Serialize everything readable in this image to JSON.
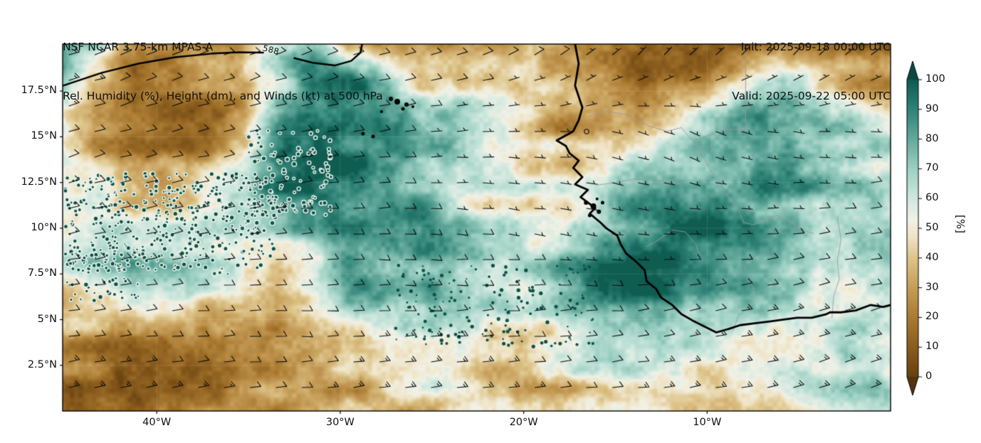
{
  "header": {
    "title_line1": "NSF NCAR 3.75-km MPAS-A",
    "title_line2": "Rel. Humidity (%), Height (dm), and Winds (kt) at 500 hPa",
    "init_label": "Init: 2025-09-18 00:00 UTC",
    "valid_label": "Valid: 2025-09-22 05:00 UTC"
  },
  "axes": {
    "x_ticks": [
      {
        "label": "40°W",
        "lon": -40
      },
      {
        "label": "30°W",
        "lon": -30
      },
      {
        "label": "20°W",
        "lon": -20
      },
      {
        "label": "10°W",
        "lon": -10
      }
    ],
    "y_ticks": [
      {
        "label": "17.5°N",
        "lat": 17.5
      },
      {
        "label": "15°N",
        "lat": 15
      },
      {
        "label": "12.5°N",
        "lat": 12.5
      },
      {
        "label": "10°N",
        "lat": 10
      },
      {
        "label": "7.5°N",
        "lat": 7.5
      },
      {
        "label": "5°N",
        "lat": 5
      },
      {
        "label": "2.5°N",
        "lat": 2.5
      }
    ]
  },
  "colorbar": {
    "unit": "[%]",
    "tick_values": [
      0,
      10,
      20,
      30,
      40,
      50,
      60,
      70,
      80,
      90,
      100
    ],
    "stops": [
      {
        "v": 0,
        "c": "#66400e"
      },
      {
        "v": 10,
        "c": "#8a5c1d"
      },
      {
        "v": 20,
        "c": "#a97a31"
      },
      {
        "v": 30,
        "c": "#c59c57"
      },
      {
        "v": 40,
        "c": "#ddc389"
      },
      {
        "v": 47,
        "c": "#eee3c4"
      },
      {
        "v": 53,
        "c": "#f1f1e6"
      },
      {
        "v": 60,
        "c": "#cfe8df"
      },
      {
        "v": 70,
        "c": "#9dd0c3"
      },
      {
        "v": 80,
        "c": "#63a99b"
      },
      {
        "v": 90,
        "c": "#2f8376"
      },
      {
        "v": 100,
        "c": "#0f5c51"
      }
    ],
    "under_color": "#553409",
    "over_color": "#0a4a41"
  },
  "chart_data": {
    "type": "heatmap",
    "field": "relative_humidity_500hPa_percent",
    "lon_range": [
      -45.13,
      0
    ],
    "lat_range": [
      0,
      20.07
    ],
    "value_range": [
      0,
      100
    ],
    "rh_grid": {
      "note": "coarse RH(%) grid, rows = lat 20N..0N step 2, cols = lon 45W..0W in 24 steps",
      "lats": [
        20,
        18,
        16,
        14,
        12,
        10,
        8,
        6,
        4,
        2,
        0
      ],
      "rows": [
        [
          75,
          60,
          28,
          25,
          28,
          35,
          75,
          85,
          45,
          35,
          35,
          30,
          30,
          35,
          30,
          20,
          10,
          8,
          8,
          10,
          20,
          15,
          10,
          12
        ],
        [
          70,
          45,
          22,
          20,
          22,
          30,
          60,
          90,
          90,
          70,
          45,
          40,
          35,
          40,
          35,
          25,
          12,
          12,
          15,
          45,
          70,
          50,
          28,
          25
        ],
        [
          55,
          25,
          20,
          18,
          20,
          30,
          80,
          95,
          90,
          85,
          60,
          70,
          55,
          45,
          30,
          40,
          35,
          55,
          75,
          80,
          70,
          65,
          60,
          50
        ],
        [
          55,
          30,
          22,
          20,
          25,
          45,
          90,
          95,
          90,
          90,
          80,
          70,
          50,
          40,
          35,
          45,
          60,
          70,
          80,
          75,
          80,
          70,
          75,
          65
        ],
        [
          45,
          55,
          35,
          30,
          40,
          60,
          85,
          95,
          90,
          85,
          80,
          60,
          55,
          50,
          45,
          55,
          75,
          85,
          90,
          85,
          80,
          75,
          70,
          65
        ],
        [
          50,
          60,
          55,
          50,
          55,
          65,
          80,
          85,
          80,
          75,
          80,
          70,
          60,
          55,
          65,
          80,
          90,
          95,
          90,
          85,
          80,
          70,
          75,
          70
        ],
        [
          60,
          75,
          80,
          75,
          70,
          55,
          45,
          60,
          85,
          80,
          85,
          80,
          70,
          65,
          75,
          90,
          95,
          95,
          90,
          80,
          70,
          65,
          70,
          75
        ],
        [
          40,
          45,
          50,
          55,
          45,
          40,
          35,
          45,
          70,
          80,
          85,
          80,
          70,
          60,
          70,
          85,
          95,
          90,
          85,
          75,
          60,
          55,
          60,
          65
        ],
        [
          25,
          22,
          20,
          25,
          28,
          30,
          30,
          35,
          40,
          45,
          50,
          55,
          45,
          40,
          55,
          65,
          70,
          65,
          62,
          58,
          55,
          52,
          58,
          62
        ],
        [
          20,
          18,
          15,
          18,
          20,
          25,
          28,
          30,
          35,
          40,
          45,
          50,
          45,
          40,
          45,
          52,
          55,
          52,
          50,
          55,
          62,
          68,
          72,
          68
        ],
        [
          22,
          20,
          18,
          20,
          22,
          28,
          30,
          32,
          35,
          38,
          42,
          45,
          42,
          38,
          42,
          46,
          48,
          46,
          45,
          50,
          56,
          62,
          68,
          64
        ]
      ]
    },
    "wind_grid": {
      "note": "wind barbs (kt), dir = meteorological direction wind blows FROM",
      "lons": [
        -45,
        -39.4,
        -33.8,
        -28.2,
        -22.6,
        -16.9,
        -11.3,
        -5.6,
        0
      ],
      "lats": [
        20,
        15,
        10,
        5,
        0
      ],
      "speed_kt": [
        [
          15,
          12,
          10,
          12,
          10,
          8,
          6,
          5,
          5
        ],
        [
          12,
          10,
          8,
          10,
          4,
          2,
          3,
          5,
          6
        ],
        [
          10,
          8,
          8,
          8,
          8,
          5,
          5,
          8,
          10
        ],
        [
          12,
          10,
          10,
          12,
          12,
          10,
          12,
          15,
          12
        ],
        [
          15,
          15,
          12,
          15,
          15,
          12,
          15,
          15,
          15
        ]
      ],
      "dir_from_deg": [
        [
          70,
          70,
          68,
          75,
          70,
          45,
          35,
          40,
          50
        ],
        [
          72,
          75,
          78,
          80,
          90,
          95,
          120,
          100,
          90
        ],
        [
          75,
          78,
          85,
          90,
          95,
          100,
          90,
          85,
          80
        ],
        [
          82,
          85,
          90,
          90,
          85,
          85,
          80,
          75,
          75
        ],
        [
          75,
          80,
          85,
          80,
          80,
          85,
          80,
          75,
          70
        ]
      ]
    },
    "contour_588": {
      "label": "588",
      "value_dm": 588,
      "segments": [
        [
          [
            -45.1,
            17.8
          ],
          [
            -43.0,
            18.5
          ],
          [
            -41.0,
            19.0
          ],
          [
            -39.0,
            19.35
          ],
          [
            -37.0,
            19.55
          ],
          [
            -35.5,
            19.62
          ],
          [
            -34.2,
            19.6
          ]
        ],
        [
          [
            -32.5,
            19.3
          ],
          [
            -31.5,
            19.05
          ],
          [
            -30.3,
            18.9
          ],
          [
            -29.4,
            19.15
          ],
          [
            -28.9,
            19.6
          ],
          [
            -28.8,
            20.1
          ]
        ]
      ]
    },
    "coastline": [
      [
        -17.2,
        20.07
      ],
      [
        -17.0,
        19.0
      ],
      [
        -17.2,
        17.8
      ],
      [
        -16.8,
        16.6
      ],
      [
        -17.0,
        15.9
      ],
      [
        -17.3,
        15.3
      ],
      [
        -18.2,
        14.8
      ],
      [
        -17.7,
        14.5
      ],
      [
        -17.5,
        14.1
      ],
      [
        -17.0,
        13.7
      ],
      [
        -17.3,
        13.3
      ],
      [
        -16.8,
        12.8
      ],
      [
        -17.2,
        12.4
      ],
      [
        -16.5,
        12.1
      ],
      [
        -16.9,
        11.7
      ],
      [
        -16.1,
        11.1
      ],
      [
        -16.4,
        10.8
      ],
      [
        -15.8,
        10.3
      ],
      [
        -15.5,
        10.0
      ],
      [
        -14.9,
        9.6
      ],
      [
        -14.7,
        9.1
      ],
      [
        -14.4,
        8.6
      ],
      [
        -13.9,
        8.2
      ],
      [
        -13.4,
        7.7
      ],
      [
        -13.3,
        7.1
      ],
      [
        -12.8,
        6.7
      ],
      [
        -12.5,
        6.2
      ],
      [
        -11.9,
        5.8
      ],
      [
        -11.4,
        5.3
      ],
      [
        -10.7,
        4.9
      ],
      [
        -10.1,
        4.6
      ],
      [
        -9.5,
        4.3
      ],
      [
        -8.8,
        4.5
      ],
      [
        -8.2,
        4.7
      ],
      [
        -7.4,
        4.8
      ],
      [
        -6.6,
        4.9
      ],
      [
        -5.9,
        5.0
      ],
      [
        -5.1,
        5.1
      ],
      [
        -4.3,
        5.1
      ],
      [
        -3.5,
        5.3
      ],
      [
        -3.3,
        5.4
      ],
      [
        -2.7,
        5.4
      ],
      [
        -1.9,
        5.5
      ],
      [
        -1.1,
        5.8
      ],
      [
        -0.4,
        5.7
      ],
      [
        0.0,
        5.8
      ]
    ],
    "islands": [
      {
        "lon": -27.24,
        "lat": 17.08,
        "r": 3
      },
      {
        "lon": -26.89,
        "lat": 16.92,
        "r": 4
      },
      {
        "lon": -26.39,
        "lat": 16.76,
        "r": 3
      },
      {
        "lon": -26.58,
        "lat": 16.53,
        "r": 2.5
      },
      {
        "lon": -28.76,
        "lat": 15.17,
        "r": 2.5
      },
      {
        "lon": -28.21,
        "lat": 15.01,
        "r": 2.5
      },
      {
        "lon": -27.75,
        "lat": 16.38,
        "r": 2
      },
      {
        "lon": -26.04,
        "lat": 16.65,
        "r": 2
      },
      {
        "lon": -16.6,
        "lat": 11.4,
        "r": 3
      },
      {
        "lon": -16.2,
        "lat": 11.2,
        "r": 4
      },
      {
        "lon": -15.9,
        "lat": 10.9,
        "r": 3
      },
      {
        "lon": -16.4,
        "lat": 10.7,
        "r": 2.5
      },
      {
        "lon": -15.7,
        "lat": 11.4,
        "r": 2.5
      },
      {
        "lon": -16.0,
        "lat": 11.6,
        "r": 2
      }
    ],
    "borders": [
      [
        [
          -16.5,
          16.1
        ],
        [
          -15.5,
          16.4
        ],
        [
          -14.3,
          16.2
        ],
        [
          -13.2,
          15.6
        ],
        [
          -12.2,
          15.3
        ],
        [
          -11.4,
          15.5
        ],
        [
          -11.0,
          15.0
        ],
        [
          -10.7,
          14.8
        ]
      ],
      [
        [
          -16.0,
          12.36
        ],
        [
          -15.0,
          12.5
        ],
        [
          -14.0,
          12.68
        ],
        [
          -13.0,
          12.65
        ],
        [
          -12.0,
          12.5
        ],
        [
          -11.4,
          12.4
        ]
      ],
      [
        [
          -10.7,
          14.8
        ],
        [
          -10.3,
          14.0
        ],
        [
          -9.7,
          13.0
        ],
        [
          -9.3,
          12.5
        ],
        [
          -8.7,
          11.5
        ],
        [
          -8.3,
          11.0
        ],
        [
          -8.0,
          10.3
        ]
      ],
      [
        [
          -8.0,
          10.3
        ],
        [
          -7.5,
          10.2
        ],
        [
          -6.8,
          10.4
        ],
        [
          -6.2,
          10.7
        ],
        [
          -5.5,
          10.4
        ],
        [
          -4.8,
          9.9
        ],
        [
          -4.2,
          9.7
        ]
      ],
      [
        [
          -8.6,
          4.4
        ],
        [
          -8.3,
          5.2
        ],
        [
          -7.8,
          5.6
        ],
        [
          -7.4,
          6.5
        ],
        [
          -7.7,
          7.2
        ],
        [
          -8.0,
          8.0
        ]
      ],
      [
        [
          -13.3,
          9.0
        ],
        [
          -12.6,
          9.4
        ],
        [
          -11.9,
          9.9
        ],
        [
          -11.2,
          9.8
        ],
        [
          -10.6,
          9.1
        ],
        [
          -10.4,
          8.4
        ]
      ],
      [
        [
          -3.2,
          5.1
        ],
        [
          -3.1,
          6.3
        ],
        [
          -2.8,
          7.2
        ],
        [
          -2.9,
          8.2
        ],
        [
          -2.7,
          9.4
        ],
        [
          -2.9,
          10.6
        ]
      ],
      [
        [
          -7.9,
          20.0
        ],
        [
          -7.9,
          15.4
        ],
        [
          -9.0,
          15.4
        ],
        [
          -10.7,
          14.8
        ]
      ]
    ],
    "speckle_regions": [
      {
        "lon_min": -45,
        "lon_max": -33.5,
        "lat_min": 7.5,
        "lat_max": 13,
        "count": 420,
        "ring": true
      },
      {
        "lon_min": -35,
        "lon_max": -30.5,
        "lat_min": 10.5,
        "lat_max": 15.5,
        "count": 110,
        "ring": true
      },
      {
        "lon_min": -27,
        "lon_max": -16,
        "lat_min": 3.5,
        "lat_max": 8,
        "count": 170,
        "ring": false
      },
      {
        "lon_min": -45,
        "lon_max": -41,
        "lat_min": 6,
        "lat_max": 9,
        "count": 60,
        "ring": true
      }
    ],
    "speckle_dot_color": "#0d5348",
    "speckle_ring_color": "#edf5ee",
    "coast_color": "#000000",
    "border_color": "#9a9a9a",
    "barb_color": "#0a0a0a"
  }
}
